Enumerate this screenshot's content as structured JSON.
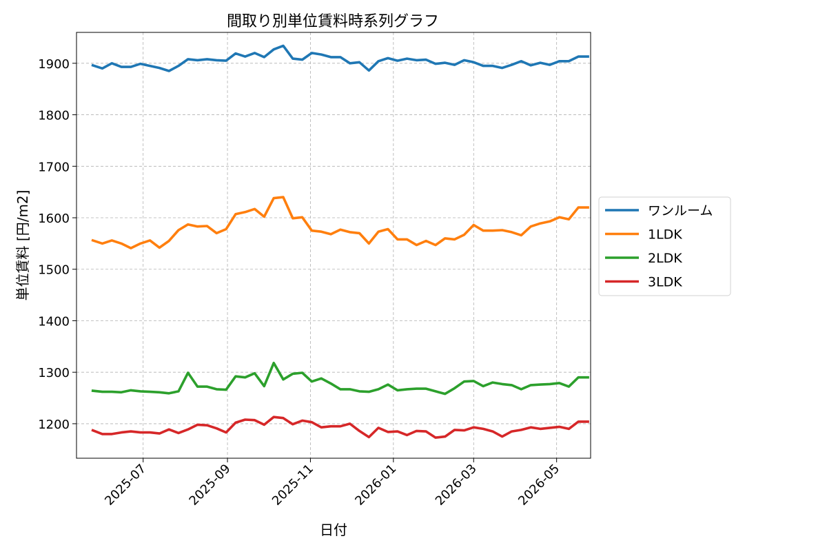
{
  "chart_data": {
    "type": "line",
    "title": "間取り別単位賃料時系列グラフ",
    "xlabel": "日付",
    "ylabel": "単位賃料 [円/m2]",
    "x_axis_type": "date",
    "xlim": [
      "2025-05-13",
      "2026-05-26"
    ],
    "ylim": [
      1133,
      1960
    ],
    "x_ticks": [
      "2025-07-01",
      "2025-09-01",
      "2025-11-01",
      "2026-01-01",
      "2026-03-01",
      "2026-05-01"
    ],
    "x_tick_labels": [
      "2025-07",
      "2025-09",
      "2025-11",
      "2026-01",
      "2026-03",
      "2026-05"
    ],
    "y_ticks": [
      1200,
      1300,
      1400,
      1500,
      1600,
      1700,
      1800,
      1900
    ],
    "y_tick_labels": [
      "1200",
      "1300",
      "1400",
      "1500",
      "1600",
      "1700",
      "1800",
      "1900"
    ],
    "grid": true,
    "legend_position": "outside right, centered vertically",
    "x": [
      "2025-05-25",
      "2025-06-01",
      "2025-06-08",
      "2025-06-15",
      "2025-06-22",
      "2025-06-29",
      "2025-07-06",
      "2025-07-13",
      "2025-07-20",
      "2025-07-27",
      "2025-08-03",
      "2025-08-10",
      "2025-08-17",
      "2025-08-24",
      "2025-08-31",
      "2025-09-07",
      "2025-09-14",
      "2025-09-21",
      "2025-09-28",
      "2025-10-05",
      "2025-10-12",
      "2025-10-19",
      "2025-10-26",
      "2025-11-02",
      "2025-11-09",
      "2025-11-16",
      "2025-11-23",
      "2025-11-30",
      "2025-12-07",
      "2025-12-14",
      "2025-12-21",
      "2025-12-28",
      "2026-01-04",
      "2026-01-11",
      "2026-01-18",
      "2026-01-25",
      "2026-02-01",
      "2026-02-08",
      "2026-02-15",
      "2026-02-22",
      "2026-03-01",
      "2026-03-08",
      "2026-03-15",
      "2026-03-22",
      "2026-03-29",
      "2026-04-05",
      "2026-04-12",
      "2026-04-19",
      "2026-04-26",
      "2026-05-03",
      "2026-05-10",
      "2026-05-17",
      "2026-05-24"
    ],
    "series": [
      {
        "name": "ワンルーム",
        "color": "#1f77b4",
        "values": [
          1896,
          1890,
          1900,
          1893,
          1893,
          1899,
          1895,
          1891,
          1885,
          1895,
          1908,
          1906,
          1908,
          1906,
          1905,
          1919,
          1913,
          1920,
          1912,
          1927,
          1934,
          1909,
          1907,
          1920,
          1917,
          1912,
          1912,
          1900,
          1902,
          1886,
          1904,
          1910,
          1905,
          1909,
          1906,
          1907,
          1899,
          1901,
          1897,
          1906,
          1902,
          1895,
          1895,
          1891,
          1897,
          1904,
          1896,
          1901,
          1897,
          1904,
          1904,
          1913,
          1913
        ]
      },
      {
        "name": "1LDK",
        "color": "#ff7f0e",
        "values": [
          1556,
          1550,
          1556,
          1550,
          1541,
          1550,
          1556,
          1542,
          1555,
          1576,
          1587,
          1583,
          1584,
          1570,
          1578,
          1607,
          1611,
          1617,
          1602,
          1638,
          1640,
          1599,
          1601,
          1575,
          1573,
          1568,
          1577,
          1572,
          1570,
          1550,
          1573,
          1578,
          1558,
          1558,
          1547,
          1555,
          1547,
          1560,
          1558,
          1567,
          1586,
          1575,
          1575,
          1576,
          1572,
          1566,
          1583,
          1589,
          1593,
          1601,
          1597,
          1620,
          1620
        ]
      },
      {
        "name": "2LDK",
        "color": "#2ca02c",
        "values": [
          1264,
          1262,
          1262,
          1261,
          1265,
          1263,
          1262,
          1261,
          1259,
          1263,
          1299,
          1272,
          1272,
          1267,
          1266,
          1292,
          1290,
          1298,
          1273,
          1318,
          1286,
          1297,
          1299,
          1282,
          1288,
          1278,
          1267,
          1267,
          1263,
          1262,
          1267,
          1276,
          1265,
          1267,
          1268,
          1268,
          1263,
          1258,
          1269,
          1282,
          1283,
          1273,
          1280,
          1277,
          1275,
          1267,
          1275,
          1276,
          1277,
          1279,
          1272,
          1290,
          1290
        ]
      },
      {
        "name": "3LDK",
        "color": "#d62728",
        "values": [
          1187,
          1180,
          1180,
          1183,
          1185,
          1183,
          1183,
          1181,
          1189,
          1182,
          1189,
          1198,
          1197,
          1191,
          1183,
          1202,
          1208,
          1207,
          1198,
          1213,
          1211,
          1199,
          1206,
          1203,
          1193,
          1195,
          1195,
          1200,
          1186,
          1174,
          1192,
          1184,
          1185,
          1178,
          1186,
          1185,
          1173,
          1175,
          1188,
          1187,
          1193,
          1190,
          1185,
          1175,
          1185,
          1188,
          1193,
          1190,
          1192,
          1194,
          1190,
          1204,
          1204
        ]
      }
    ]
  }
}
